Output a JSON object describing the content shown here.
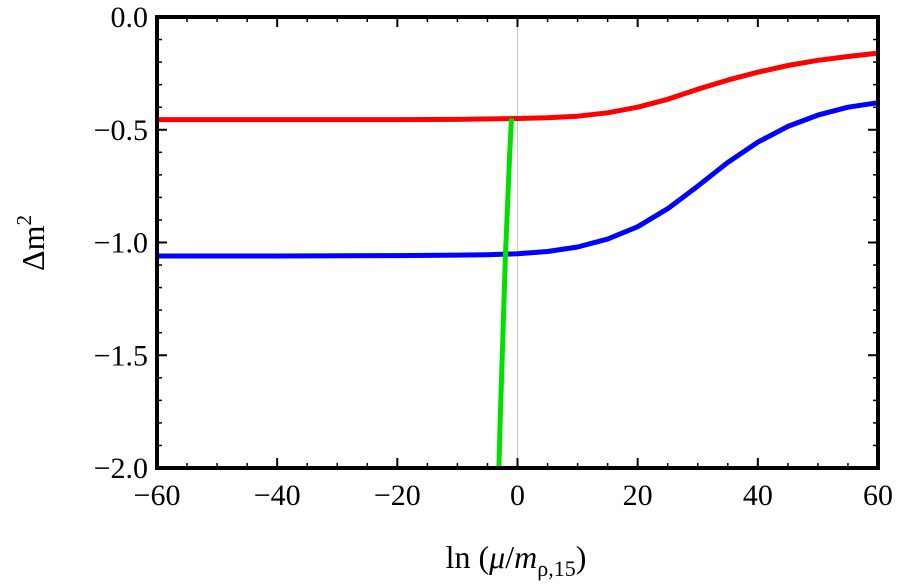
{
  "chart_data": {
    "type": "line",
    "title": "",
    "xlabel": {
      "pre": "ln (",
      "mu": "μ",
      "slash": "/",
      "m": "m",
      "sub": "ρ,15",
      "post": ")"
    },
    "ylabel": {
      "base": "Δm",
      "sup": "2"
    },
    "xlim": [
      -60,
      60
    ],
    "ylim": [
      -2.0,
      0.0
    ],
    "x_ticks": [
      -60,
      -40,
      -20,
      0,
      20,
      40,
      60
    ],
    "x_tick_labels": [
      "−60",
      "−40",
      "−20",
      "0",
      "20",
      "40",
      "60"
    ],
    "y_ticks": [
      0.0,
      -0.5,
      -1.0,
      -1.5,
      -2.0
    ],
    "y_tick_labels": [
      "0.0",
      "−0.5",
      "−1.0",
      "−1.5",
      "−2.0"
    ],
    "grid": false,
    "vertical_reference_line_x": 0,
    "series": [
      {
        "color": "#ff0000",
        "points": [
          [
            -60,
            -0.455
          ],
          [
            -40,
            -0.455
          ],
          [
            -20,
            -0.455
          ],
          [
            -10,
            -0.454
          ],
          [
            0,
            -0.45
          ],
          [
            5,
            -0.447
          ],
          [
            10,
            -0.44
          ],
          [
            15,
            -0.425
          ],
          [
            20,
            -0.4
          ],
          [
            25,
            -0.365
          ],
          [
            30,
            -0.32
          ],
          [
            35,
            -0.28
          ],
          [
            40,
            -0.245
          ],
          [
            45,
            -0.215
          ],
          [
            50,
            -0.192
          ],
          [
            55,
            -0.175
          ],
          [
            60,
            -0.16
          ]
        ]
      },
      {
        "color": "#0000ff",
        "points": [
          [
            -60,
            -1.06
          ],
          [
            -40,
            -1.06
          ],
          [
            -20,
            -1.058
          ],
          [
            -10,
            -1.056
          ],
          [
            -5,
            -1.054
          ],
          [
            0,
            -1.05
          ],
          [
            5,
            -1.04
          ],
          [
            10,
            -1.02
          ],
          [
            15,
            -0.985
          ],
          [
            20,
            -0.93
          ],
          [
            25,
            -0.85
          ],
          [
            30,
            -0.75
          ],
          [
            35,
            -0.645
          ],
          [
            40,
            -0.555
          ],
          [
            45,
            -0.485
          ],
          [
            50,
            -0.435
          ],
          [
            55,
            -0.4
          ],
          [
            60,
            -0.38
          ]
        ]
      },
      {
        "color": "#00e000",
        "points": [
          [
            -1,
            -0.45
          ],
          [
            -1.3,
            -0.6
          ],
          [
            -1.6,
            -0.8
          ],
          [
            -2.0,
            -1.05
          ],
          [
            -2.3,
            -1.3
          ],
          [
            -2.6,
            -1.55
          ],
          [
            -2.9,
            -1.8
          ],
          [
            -3.1,
            -2.0
          ]
        ]
      }
    ]
  }
}
